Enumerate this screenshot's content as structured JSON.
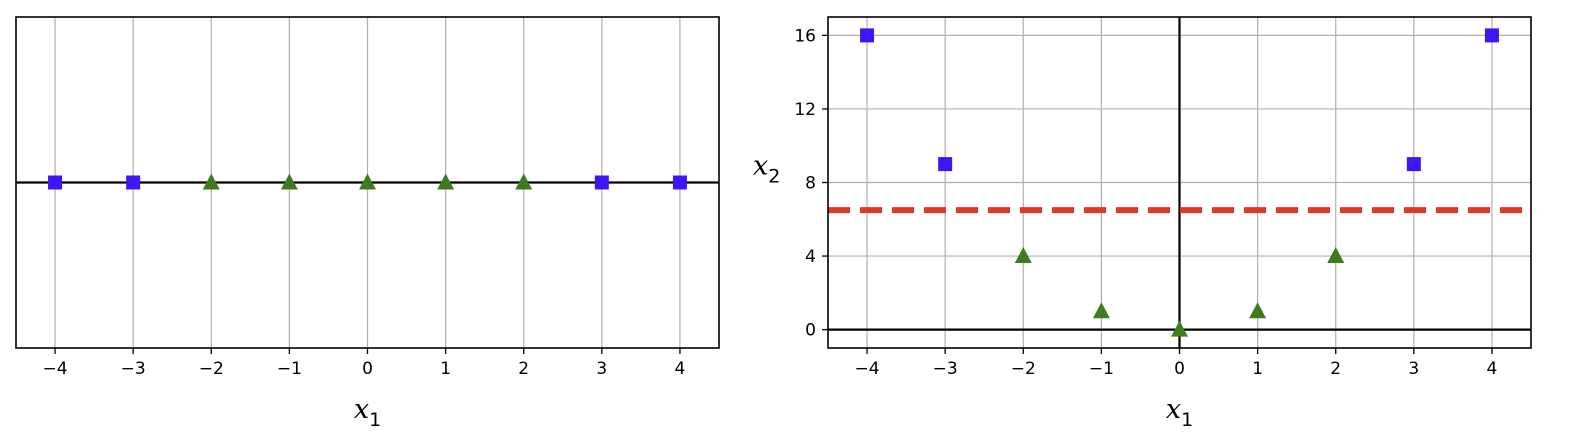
{
  "colors": {
    "square": "#3A17F5",
    "triangle": "#3E7C1E",
    "boundary": "#E0372B",
    "grid": "#b0b0b0",
    "axis": "#000000"
  },
  "chart_data": [
    {
      "type": "scatter",
      "xlabel": "x1",
      "xlabel_parts": [
        "x",
        "1"
      ],
      "ylabel": "",
      "xlim": [
        -4.5,
        4.5
      ],
      "ylim": [
        -0.2,
        0.2
      ],
      "xticks": [
        -4,
        -3,
        -2,
        -1,
        0,
        1,
        2,
        3,
        4
      ],
      "xtick_labels": [
        "−4",
        "−3",
        "−2",
        "−1",
        "0",
        "1",
        "2",
        "3",
        "4"
      ],
      "yticks": [],
      "grid": true,
      "hline": 0,
      "series": [
        {
          "marker": "square",
          "color": "#3A17F5",
          "x": [
            -4,
            -3,
            3,
            4
          ],
          "y": [
            0,
            0,
            0,
            0
          ]
        },
        {
          "marker": "triangle",
          "color": "#3E7C1E",
          "x": [
            -2,
            -1,
            0,
            1,
            2
          ],
          "y": [
            0,
            0,
            0,
            0,
            0
          ]
        }
      ]
    },
    {
      "type": "scatter",
      "xlabel": "x1",
      "xlabel_parts": [
        "x",
        "1"
      ],
      "ylabel": "x2",
      "ylabel_parts": [
        "x",
        "2"
      ],
      "xlim": [
        -4.5,
        4.5
      ],
      "ylim": [
        -1,
        17
      ],
      "xticks": [
        -4,
        -3,
        -2,
        -1,
        0,
        1,
        2,
        3,
        4
      ],
      "xtick_labels": [
        "−4",
        "−3",
        "−2",
        "−1",
        "0",
        "1",
        "2",
        "3",
        "4"
      ],
      "yticks": [
        0,
        4,
        8,
        12,
        16
      ],
      "ytick_labels": [
        "0",
        "4",
        "8",
        "12",
        "16"
      ],
      "grid": true,
      "hline": 0,
      "vline": 0,
      "decision_boundary": {
        "y": 6.5,
        "style": "dashed",
        "color": "#E0372B"
      },
      "series": [
        {
          "marker": "square",
          "color": "#3A17F5",
          "x": [
            -4,
            -3,
            3,
            4
          ],
          "y": [
            16,
            9,
            9,
            16
          ]
        },
        {
          "marker": "triangle",
          "color": "#3E7C1E",
          "x": [
            -2,
            -1,
            0,
            1,
            2
          ],
          "y": [
            4,
            1,
            0,
            1,
            4
          ]
        }
      ]
    }
  ]
}
